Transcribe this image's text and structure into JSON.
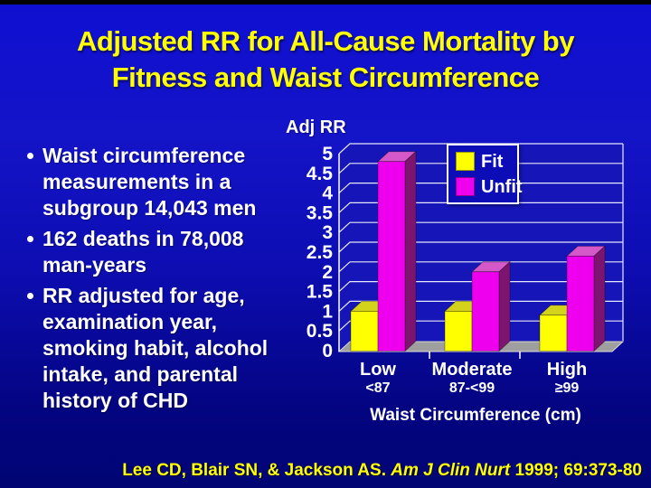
{
  "slide": {
    "title_lines": [
      "Adjusted RR for All-Cause Mortality by",
      "Fitness and Waist Circumference"
    ],
    "title_color": "#ffff00",
    "bullets": [
      "Waist circumference measurements in a subgroup 14,043 men",
      "162 deaths in 78,008 man-years",
      "RR adjusted for age, examination year, smoking habit, alcohol intake, and parental history of CHD"
    ],
    "citation": {
      "authors": "Lee CD, Blair SN, & Jackson AS.",
      "journal": "Am J Clin Nurt",
      "tail": "1999; 69:373-80"
    }
  },
  "chart_data": {
    "type": "bar",
    "style": "3d-column",
    "value_axis_label": "Adj RR",
    "xlabel": "Waist Circumference (cm)",
    "categories": [
      "Low",
      "Moderate",
      "High"
    ],
    "category_sublabels": [
      "<87",
      "87-<99",
      "≥99"
    ],
    "series": [
      {
        "name": "Fit",
        "color": "#ffff00",
        "top_color": "#d3d31c",
        "side_color": "#a3a300",
        "values": [
          1.0,
          1.0,
          0.9
        ]
      },
      {
        "name": "Unfit",
        "color": "#ee00ee",
        "top_color": "#d558c8",
        "side_color": "#7d1570",
        "values": [
          4.8,
          2.0,
          2.4
        ]
      }
    ],
    "ylim": [
      0,
      5
    ],
    "ytick_step": 0.5,
    "grid": true,
    "legend_position": "top-right",
    "wall_color": "#1515b8",
    "floor_color": "#9f9f9f",
    "gridline_color": "#e8e8fa"
  }
}
